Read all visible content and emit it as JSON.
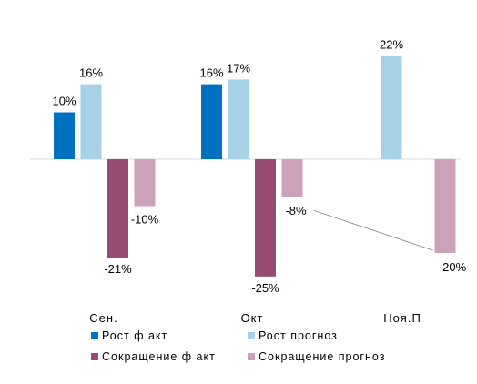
{
  "chart_data": {
    "type": "bar",
    "categories": [
      "Сен.",
      "Окт",
      "Ноя.П"
    ],
    "series": [
      {
        "name": "Рост ф акт",
        "color": "#0070C0",
        "values": [
          10,
          16,
          null
        ],
        "labels": [
          "10%",
          "16%",
          ""
        ]
      },
      {
        "name": "Рост прогноз",
        "color": "#A6D2E8",
        "values": [
          16,
          17,
          22
        ],
        "labels": [
          "16%",
          "17%",
          "22%"
        ]
      },
      {
        "name": "Сокращение ф акт",
        "color": "#974B73",
        "values": [
          -21,
          -25,
          null
        ],
        "labels": [
          "-21%",
          "-25%",
          ""
        ]
      },
      {
        "name": "Сокращение прогноз",
        "color": "#CCA2BA",
        "values": [
          -10,
          -8,
          -20
        ],
        "labels": [
          "-10%",
          "-8%",
          "-20%"
        ]
      }
    ],
    "ylim": [
      -27,
      24
    ],
    "grid": false,
    "legend_position": "bottom",
    "annotations": [
      {
        "type": "leader-line",
        "from_series": "Сокращение прогноз",
        "from_category": "Окт",
        "to_category": "Ноя.П"
      }
    ]
  }
}
